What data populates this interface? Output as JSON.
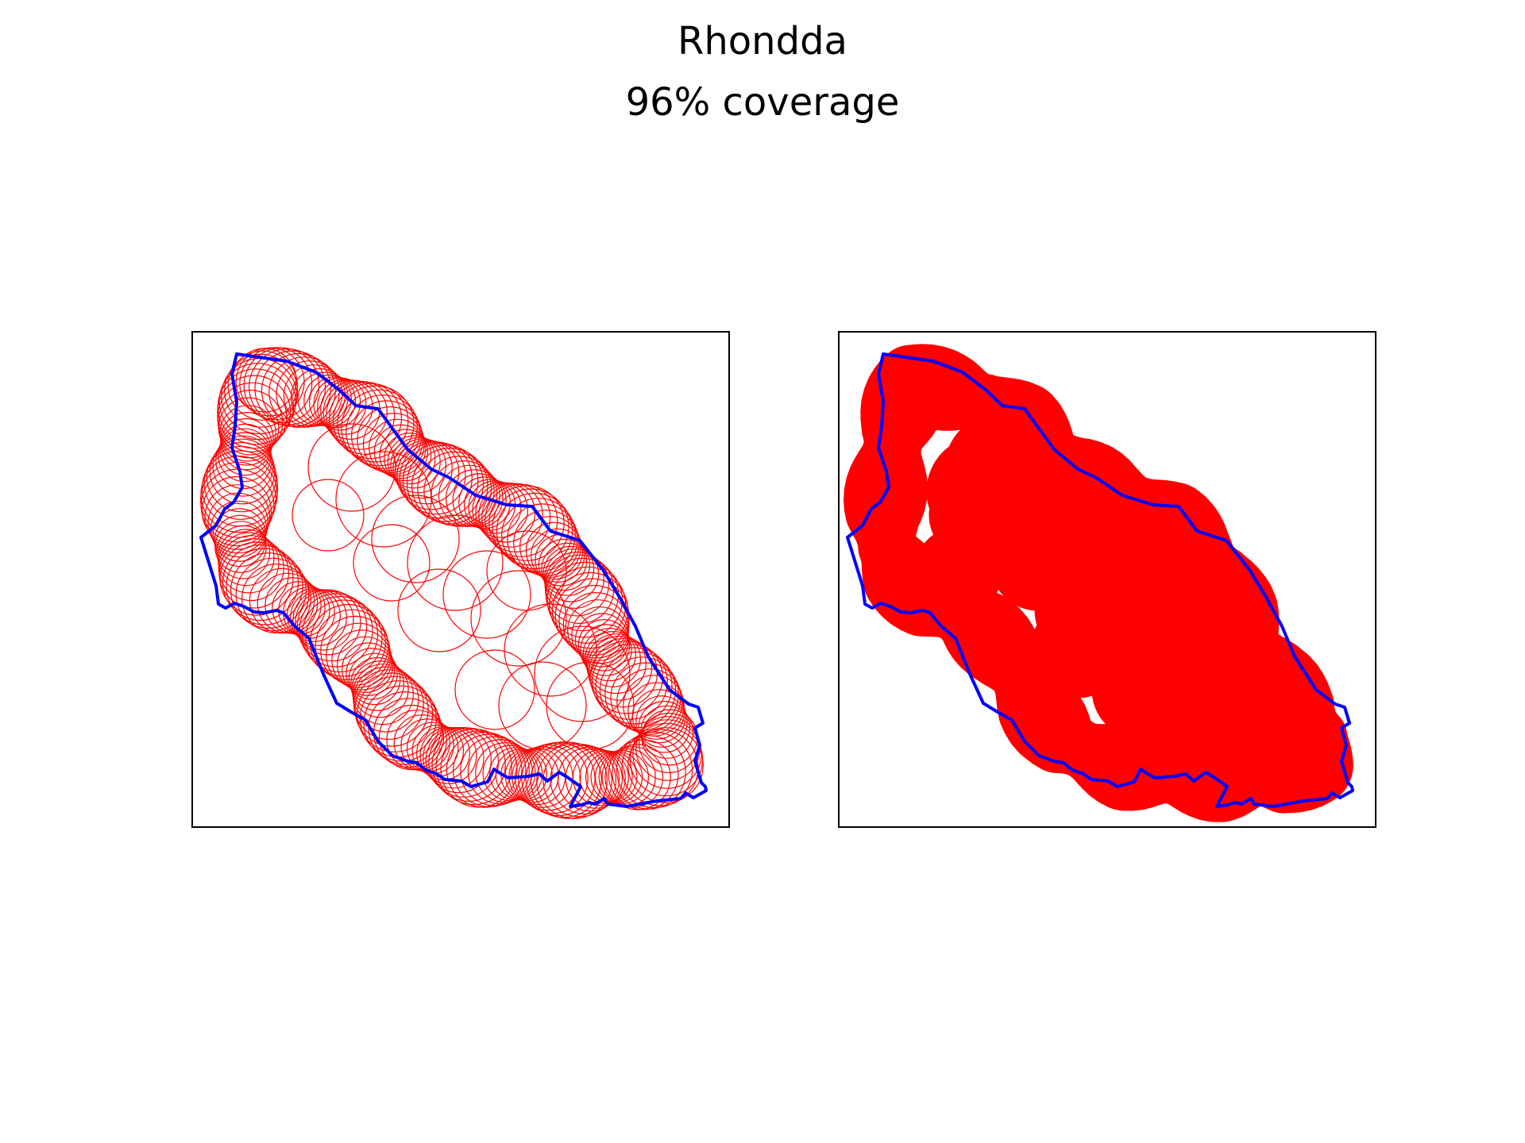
{
  "figure": {
    "title": "Rhondda",
    "subtitle": "96% coverage",
    "colors": {
      "boundary": "#0000ff",
      "coverage": "#ff0000",
      "frame": "#000000",
      "background": "#ffffff"
    }
  },
  "panels": [
    {
      "name": "circles-outline",
      "style": "outline"
    },
    {
      "name": "circles-filled",
      "style": "filled"
    }
  ]
}
